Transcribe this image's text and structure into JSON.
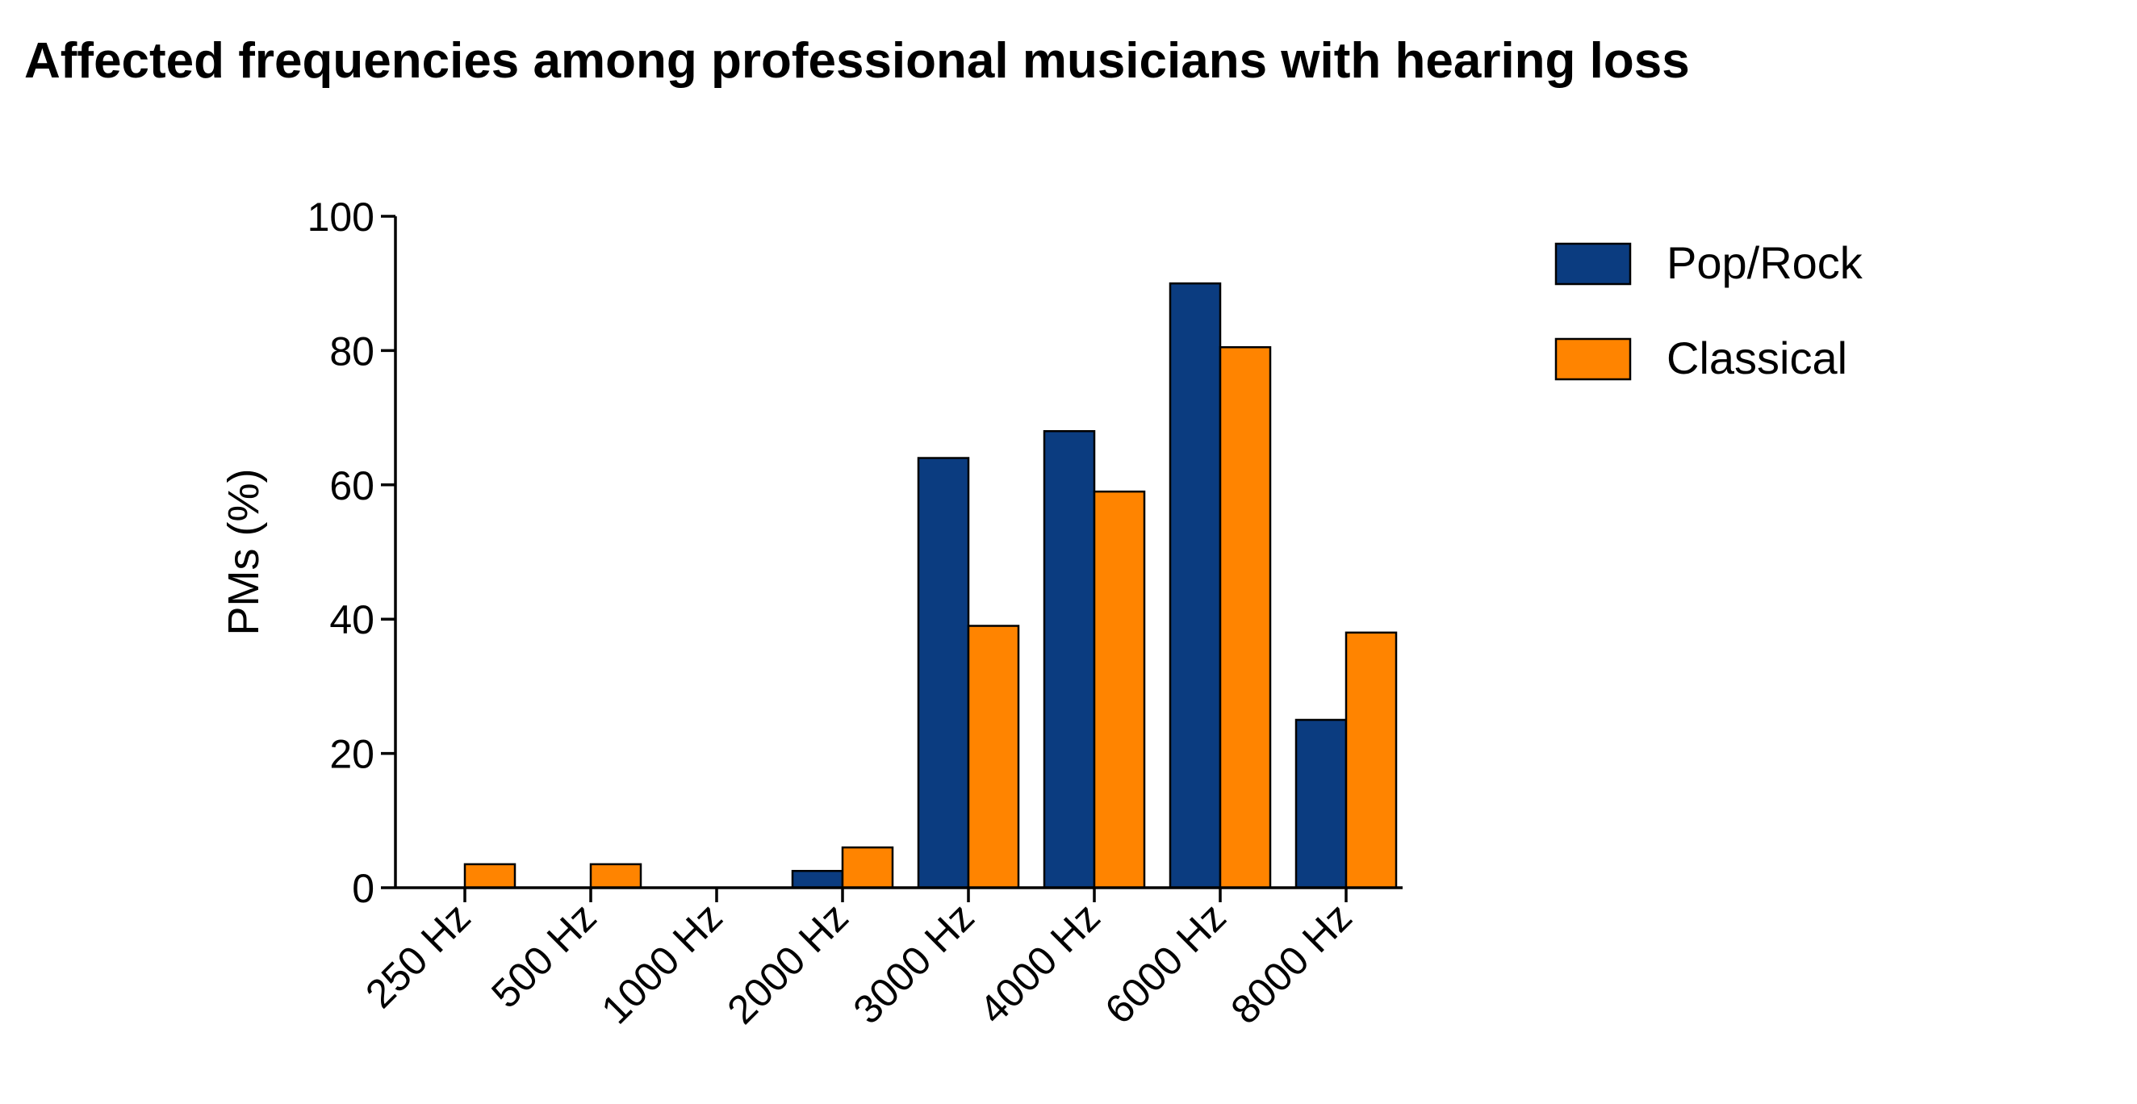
{
  "chart_data": {
    "type": "bar",
    "title": "Affected frequencies among professional musicians with hearing loss",
    "xlabel": "",
    "ylabel": "PMs (%)",
    "ylim": [
      0,
      100
    ],
    "yticks": [
      0,
      20,
      40,
      60,
      80,
      100
    ],
    "categories": [
      "250 Hz",
      "500 Hz",
      "1000 Hz",
      "2000 Hz",
      "3000 Hz",
      "4000 Hz",
      "6000 Hz",
      "8000 Hz"
    ],
    "series": [
      {
        "name": "Pop/Rock",
        "color": "#0b3c80",
        "values": [
          0,
          0,
          0,
          2.5,
          64,
          68,
          90,
          25
        ]
      },
      {
        "name": "Classical",
        "color": "#ff8400",
        "values": [
          3.5,
          3.5,
          0,
          6,
          39,
          59,
          80.5,
          38
        ]
      }
    ],
    "legend": "top-right",
    "grid": false
  }
}
